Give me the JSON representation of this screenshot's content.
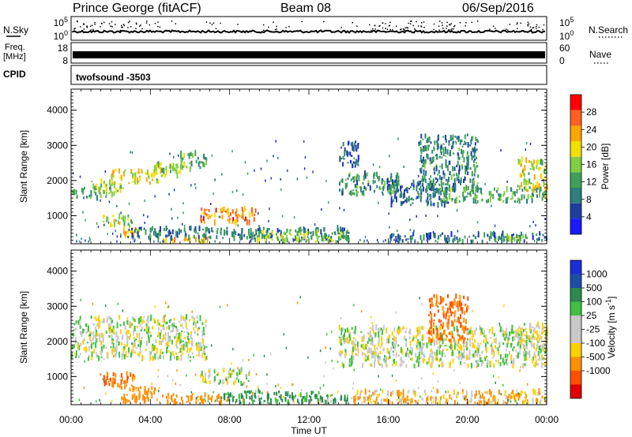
{
  "header": {
    "title": "Prince George (fitACF)",
    "beam": "Beam 08",
    "date": "06/Sep/2016"
  },
  "strips": {
    "nsky_label": "N.Sky",
    "nsearch_label": "N.Search",
    "freq_label_line1": "Freq.",
    "freq_label_line2": "[MHz]",
    "nave_label": "Nave",
    "cpid_label": "CPID",
    "cpid_value": "twofsound -3503",
    "noise_left_ticks": [
      "10^5",
      "10^0"
    ],
    "noise_right_ticks": [
      "10^5",
      "10^0"
    ],
    "freq_left_ticks": [
      "18",
      "8"
    ],
    "nave_right_ticks": [
      "60",
      "0"
    ],
    "freq_value_mhz": 10.5,
    "nave_value": 20
  },
  "colors": {
    "power": [
      "#1a1aff",
      "#1e3fa0",
      "#2f7f7f",
      "#3fa05a",
      "#7fcf3f",
      "#f0e000",
      "#ffa500",
      "#ff6020",
      "#ff0000"
    ],
    "velocity_positive": [
      "#1a2fd6",
      "#1e4fa8",
      "#2a8a50",
      "#40c040",
      "#c8c8c8"
    ],
    "velocity_negative": [
      "#c8c8c8",
      "#ffd000",
      "#ff9000",
      "#ff5000",
      "#e00000"
    ]
  },
  "chart_data": [
    {
      "type": "heatmap",
      "name": "power",
      "ylabel": "Slant Range [km]",
      "ylim": [
        200,
        4600
      ],
      "xlim_hours": [
        0,
        24
      ],
      "y_ticks": [
        1000,
        2000,
        3000,
        4000
      ],
      "colorbar_label": "Power [dB]",
      "colorbar_ticks": [
        4,
        8,
        12,
        16,
        20,
        24,
        28
      ],
      "colorbar_range": [
        0,
        32
      ],
      "bands": [
        {
          "t0": 0.0,
          "t1": 1.5,
          "r0": 1500,
          "r1": 1800,
          "v": 13
        },
        {
          "t0": 1.0,
          "t1": 2.7,
          "r0": 1600,
          "r1": 2000,
          "v": 16
        },
        {
          "t0": 2.0,
          "t1": 4.5,
          "r0": 1900,
          "r1": 2300,
          "v": 20
        },
        {
          "t0": 4.0,
          "t1": 5.7,
          "r0": 2100,
          "r1": 2500,
          "v": 17
        },
        {
          "t0": 5.5,
          "t1": 6.8,
          "r0": 2300,
          "r1": 2800,
          "v": 14
        },
        {
          "t0": 1.6,
          "t1": 3.1,
          "r0": 700,
          "r1": 1000,
          "v": 17
        },
        {
          "t0": 2.6,
          "t1": 3.4,
          "r0": 400,
          "r1": 650,
          "v": 21
        },
        {
          "t0": 4.5,
          "t1": 7.0,
          "r0": 260,
          "r1": 360,
          "v": 21
        },
        {
          "t0": 3.0,
          "t1": 14.0,
          "r0": 350,
          "r1": 650,
          "v": 9
        },
        {
          "t0": 6.5,
          "t1": 9.3,
          "r0": 800,
          "r1": 1200,
          "v": 24
        },
        {
          "t0": 9.0,
          "t1": 14.0,
          "r0": 250,
          "r1": 550,
          "v": 15
        },
        {
          "t0": 13.5,
          "t1": 16.5,
          "r0": 1600,
          "r1": 2200,
          "v": 11
        },
        {
          "t0": 13.5,
          "t1": 14.5,
          "r0": 2400,
          "r1": 3100,
          "v": 7
        },
        {
          "t0": 16.0,
          "t1": 19.0,
          "r0": 1300,
          "r1": 2000,
          "v": 8
        },
        {
          "t0": 17.5,
          "t1": 20.5,
          "r0": 1700,
          "r1": 3300,
          "v": 10
        },
        {
          "t0": 18.5,
          "t1": 24.0,
          "r0": 1400,
          "r1": 1800,
          "v": 13
        },
        {
          "t0": 22.5,
          "t1": 24.0,
          "r0": 1700,
          "r1": 2600,
          "v": 18
        },
        {
          "t0": 16.0,
          "t1": 24.0,
          "r0": 250,
          "r1": 500,
          "v": 8
        },
        {
          "t0": 21.5,
          "t1": 23.0,
          "r0": 300,
          "r1": 450,
          "v": 14
        }
      ]
    },
    {
      "type": "heatmap",
      "name": "velocity",
      "ylabel": "Slant Range [km]",
      "ylim": [
        200,
        4600
      ],
      "xlim_hours": [
        0,
        24
      ],
      "y_ticks": [
        1000,
        2000,
        3000,
        4000
      ],
      "colorbar_label": "Velocity [m s^-1]",
      "colorbar_ticks": [
        "1000",
        "500",
        "100",
        "25",
        "-25",
        "-100",
        "-500",
        "-1000"
      ],
      "bands": [
        {
          "t0": 0.0,
          "t1": 6.8,
          "r0": 1500,
          "r1": 2700,
          "v": 0
        },
        {
          "t0": 6.5,
          "t1": 9.0,
          "r0": 800,
          "r1": 1200,
          "v": 0
        },
        {
          "t0": 1.4,
          "t1": 3.2,
          "r0": 700,
          "r1": 1100,
          "v": -300
        },
        {
          "t0": 2.5,
          "t1": 4.5,
          "r0": 300,
          "r1": 700,
          "v": -150
        },
        {
          "t0": 4.5,
          "t1": 8.0,
          "r0": 250,
          "r1": 500,
          "v": -120
        },
        {
          "t0": 7.5,
          "t1": 12.5,
          "r0": 250,
          "r1": 600,
          "v": 80
        },
        {
          "t0": 12.0,
          "t1": 14.0,
          "r0": 250,
          "r1": 500,
          "v": 60
        },
        {
          "t0": 13.5,
          "t1": 24.0,
          "r0": 1300,
          "r1": 2400,
          "v": 0
        },
        {
          "t0": 18.0,
          "t1": 20.0,
          "r0": 2000,
          "r1": 3300,
          "v": -300
        },
        {
          "t0": 14.0,
          "t1": 24.0,
          "r0": 250,
          "r1": 600,
          "v": -60
        },
        {
          "t0": 22.5,
          "t1": 24.0,
          "r0": 1800,
          "r1": 2500,
          "v": 0
        }
      ]
    }
  ],
  "xaxis": {
    "tick_labels": [
      "00:00",
      "04:00",
      "08:00",
      "12:00",
      "16:00",
      "20:00",
      "00:00"
    ],
    "label": "Time UT"
  }
}
